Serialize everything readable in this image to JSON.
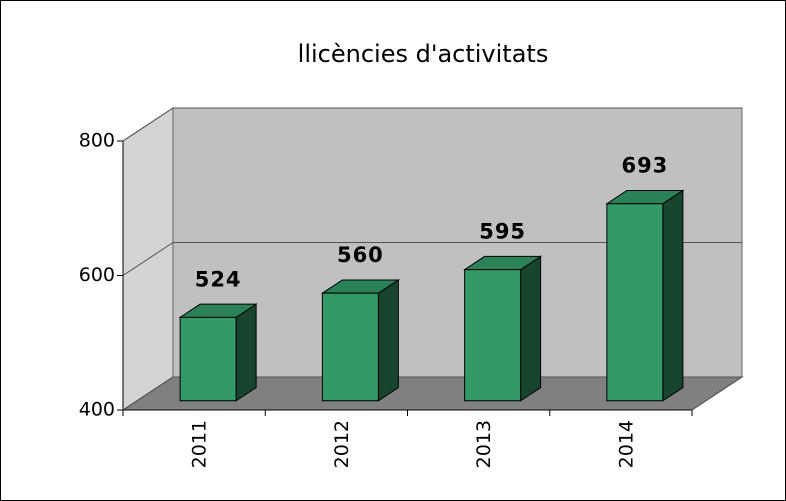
{
  "chart_data": {
    "type": "bar3d",
    "title": "llicències d'activitats",
    "categories": [
      "2011",
      "2012",
      "2013",
      "2014"
    ],
    "values": [
      524,
      560,
      595,
      693
    ],
    "color": "#339966",
    "ylim": [
      400,
      800
    ],
    "yticks": [
      400,
      600,
      800
    ],
    "grid": true
  }
}
